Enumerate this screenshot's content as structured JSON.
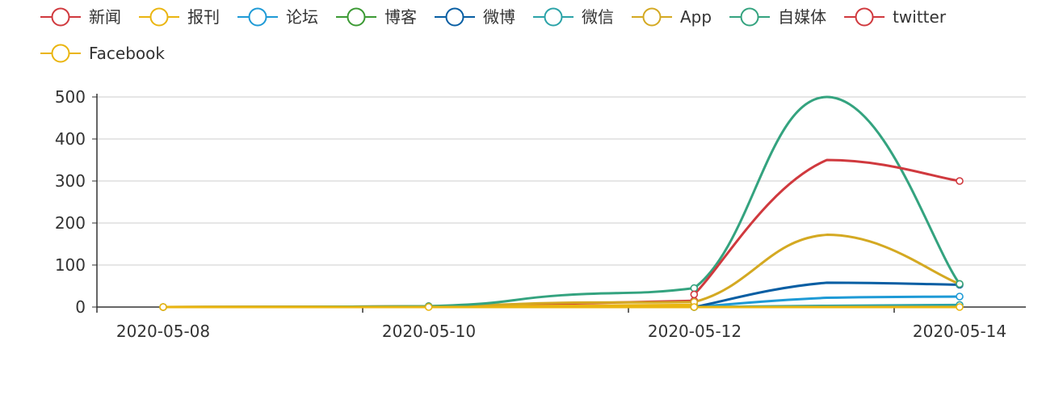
{
  "chart_data": {
    "type": "line",
    "smooth": true,
    "title": "",
    "xlabel": "",
    "ylabel": "",
    "x": [
      "2020-05-08",
      "2020-05-09",
      "2020-05-10",
      "2020-05-11",
      "2020-05-12",
      "2020-05-13",
      "2020-05-14"
    ],
    "x_ticks": [
      "2020-05-08",
      "2020-05-10",
      "2020-05-12",
      "2020-05-14"
    ],
    "ylim": [
      0,
      500
    ],
    "y_ticks": [
      0,
      100,
      200,
      300,
      400,
      500
    ],
    "grid": true,
    "legend_position": "top-left",
    "series": [
      {
        "name": "新闻",
        "color": "#d0393e",
        "values": [
          0,
          null,
          2,
          8,
          15,
          null,
          null
        ]
      },
      {
        "name": "报刊",
        "color": "#eab510",
        "values": [
          0,
          null,
          1,
          3,
          5,
          null,
          null
        ]
      },
      {
        "name": "论坛",
        "color": "#1e9ad6",
        "values": [
          null,
          null,
          null,
          null,
          0,
          22,
          25
        ]
      },
      {
        "name": "博客",
        "color": "#3c9a34",
        "values": [
          null,
          null,
          null,
          null,
          null,
          null,
          null
        ]
      },
      {
        "name": "微博",
        "color": "#075ea3",
        "values": [
          null,
          null,
          null,
          null,
          0,
          58,
          53
        ]
      },
      {
        "name": "微信",
        "color": "#2ba3a8",
        "values": [
          null,
          null,
          null,
          null,
          0,
          3,
          5
        ]
      },
      {
        "name": "App",
        "color": "#d4a922",
        "values": [
          0,
          null,
          2,
          10,
          12,
          172,
          55
        ]
      },
      {
        "name": "自媒体",
        "color": "#34a37f",
        "values": [
          0,
          null,
          2,
          28,
          45,
          500,
          55
        ]
      },
      {
        "name": "twitter",
        "color": "#d0393e",
        "values": [
          null,
          null,
          null,
          null,
          30,
          350,
          300
        ]
      },
      {
        "name": "Facebook",
        "color": "#eab510",
        "values": [
          0,
          null,
          0,
          0,
          0,
          0,
          0
        ]
      }
    ]
  }
}
